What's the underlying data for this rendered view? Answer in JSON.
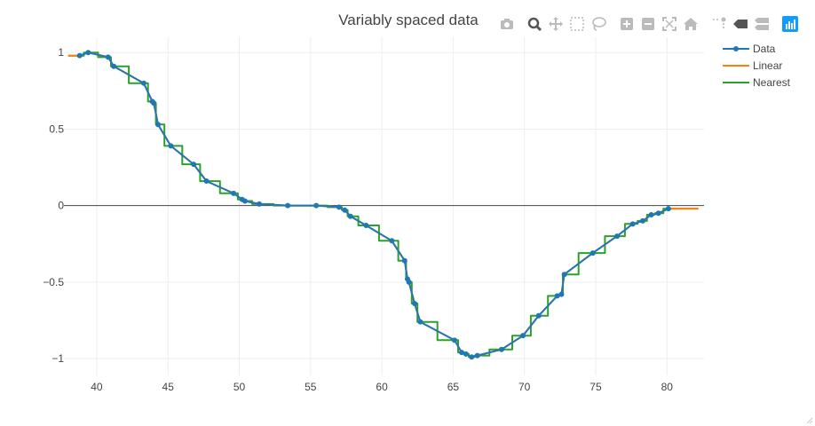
{
  "chart_data": {
    "type": "line",
    "title": "Variably spaced data",
    "xlim": [
      37.7,
      82.6
    ],
    "ylim": [
      -1.11,
      1.1
    ],
    "x_ticks": [
      40,
      45,
      50,
      55,
      60,
      65,
      70,
      75,
      80
    ],
    "y_ticks": [
      1,
      0.5,
      0,
      -0.5,
      -1
    ],
    "x_tick_labels": [
      "40",
      "45",
      "50",
      "55",
      "60",
      "65",
      "70",
      "75",
      "80"
    ],
    "y_tick_labels": [
      "1",
      "0.5",
      "0",
      "−0.5",
      "−1"
    ],
    "grid": true,
    "zero_line": true,
    "legend_position": "top-right",
    "series": [
      {
        "name": "Data",
        "color": "#1f77b4",
        "mode": "lines+markers",
        "x": [
          38.8,
          39.4,
          40.8,
          41.2,
          43.3,
          43.9,
          44.0,
          44.3,
          45.2,
          46.8,
          47.7,
          49.6,
          50.2,
          50.4,
          51.4,
          53.4,
          55.4,
          57.0,
          57.4,
          57.8,
          58.9,
          60.7,
          61.6,
          61.8,
          61.9,
          62.3,
          62.7,
          65.1,
          65.6,
          65.9,
          66.3,
          66.7,
          68.4,
          69.9,
          71.0,
          72.3,
          72.6,
          72.8,
          74.8,
          76.5,
          77.6,
          78.3,
          78.9,
          79.4,
          80.1
        ],
        "y": [
          0.98,
          1.0,
          0.97,
          0.91,
          0.8,
          0.68,
          0.67,
          0.53,
          0.39,
          0.27,
          0.16,
          0.08,
          0.04,
          0.03,
          0.01,
          0.0,
          0.0,
          -0.01,
          -0.03,
          -0.07,
          -0.13,
          -0.23,
          -0.36,
          -0.48,
          -0.5,
          -0.64,
          -0.76,
          -0.88,
          -0.96,
          -0.97,
          -0.99,
          -0.98,
          -0.94,
          -0.85,
          -0.72,
          -0.59,
          -0.58,
          -0.45,
          -0.31,
          -0.2,
          -0.12,
          -0.1,
          -0.06,
          -0.05,
          -0.02
        ]
      },
      {
        "name": "Linear",
        "color": "#ff7f0e",
        "mode": "lines",
        "x": [
          38.0,
          38.8,
          39.4,
          40.8,
          41.2,
          43.3,
          43.9,
          44.0,
          44.3,
          45.2,
          46.8,
          47.7,
          49.6,
          50.2,
          50.4,
          51.4,
          53.4,
          55.4,
          57.0,
          57.4,
          57.8,
          58.9,
          60.7,
          61.6,
          61.8,
          61.9,
          62.3,
          62.7,
          65.1,
          65.6,
          65.9,
          66.3,
          66.7,
          68.4,
          69.9,
          71.0,
          72.3,
          72.6,
          72.8,
          74.8,
          76.5,
          77.6,
          78.3,
          78.9,
          79.4,
          80.1,
          82.2
        ],
        "y": [
          0.98,
          0.98,
          1.0,
          0.97,
          0.91,
          0.8,
          0.68,
          0.67,
          0.53,
          0.39,
          0.27,
          0.16,
          0.08,
          0.04,
          0.03,
          0.01,
          0.0,
          0.0,
          -0.01,
          -0.03,
          -0.07,
          -0.13,
          -0.23,
          -0.36,
          -0.48,
          -0.5,
          -0.64,
          -0.76,
          -0.88,
          -0.96,
          -0.97,
          -0.99,
          -0.98,
          -0.94,
          -0.85,
          -0.72,
          -0.59,
          -0.58,
          -0.45,
          -0.31,
          -0.2,
          -0.12,
          -0.1,
          -0.06,
          -0.05,
          -0.02,
          -0.02
        ]
      },
      {
        "name": "Nearest",
        "color": "#2ca02c",
        "mode": "step",
        "x": [
          38.0,
          38.8,
          39.4,
          40.8,
          41.2,
          43.3,
          43.9,
          44.0,
          44.3,
          45.2,
          46.8,
          47.7,
          49.6,
          50.2,
          50.4,
          51.4,
          53.4,
          55.4,
          57.0,
          57.4,
          57.8,
          58.9,
          60.7,
          61.6,
          61.8,
          61.9,
          62.3,
          62.7,
          65.1,
          65.6,
          65.9,
          66.3,
          66.7,
          68.4,
          69.9,
          71.0,
          72.3,
          72.6,
          72.8,
          74.8,
          76.5,
          77.6,
          78.3,
          78.9,
          79.4,
          80.1,
          82.2
        ],
        "y": [
          0.98,
          0.98,
          1.0,
          0.97,
          0.91,
          0.8,
          0.68,
          0.67,
          0.53,
          0.39,
          0.27,
          0.16,
          0.08,
          0.04,
          0.03,
          0.01,
          0.0,
          0.0,
          -0.01,
          -0.03,
          -0.07,
          -0.13,
          -0.23,
          -0.36,
          -0.48,
          -0.5,
          -0.64,
          -0.76,
          -0.88,
          -0.96,
          -0.97,
          -0.99,
          -0.98,
          -0.94,
          -0.85,
          -0.72,
          -0.59,
          -0.58,
          -0.45,
          -0.31,
          -0.2,
          -0.12,
          -0.1,
          -0.06,
          -0.05,
          -0.02,
          -0.02
        ]
      }
    ]
  },
  "modebar": {
    "icon_color": "#bbbbbb",
    "active_color": "#555555",
    "logo_color": "#119dff",
    "buttons": [
      {
        "name": "camera-icon",
        "active": false
      },
      {
        "name": "zoom-icon",
        "active": true
      },
      {
        "name": "pan-icon",
        "active": false
      },
      {
        "name": "box-select-icon",
        "active": false
      },
      {
        "name": "lasso-select-icon",
        "active": false
      },
      {
        "name": "zoom-in-icon",
        "active": false
      },
      {
        "name": "zoom-out-icon",
        "active": false
      },
      {
        "name": "autoscale-icon",
        "active": false
      },
      {
        "name": "home-icon",
        "active": false
      },
      {
        "name": "spike-lines-icon",
        "active": false
      },
      {
        "name": "hover-closest-icon",
        "active": true
      },
      {
        "name": "hover-compare-icon",
        "active": false
      },
      {
        "name": "plotly-logo-icon",
        "active": false
      }
    ]
  }
}
